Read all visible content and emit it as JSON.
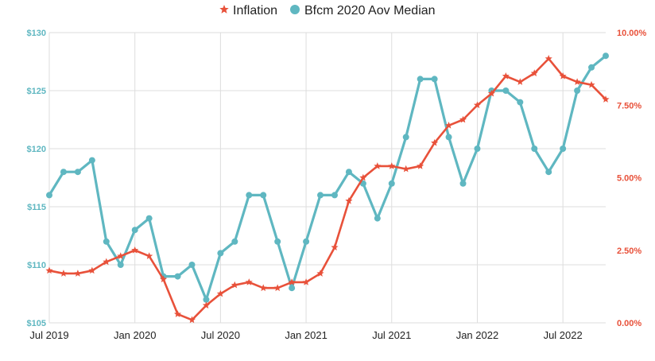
{
  "chart_data": {
    "type": "line",
    "title": "",
    "xlabel": "",
    "ylabel": "",
    "legend_position": "top-center",
    "grid": true,
    "x": [
      "2019-07",
      "2019-08",
      "2019-09",
      "2019-10",
      "2019-11",
      "2019-12",
      "2020-01",
      "2020-02",
      "2020-03",
      "2020-04",
      "2020-05",
      "2020-06",
      "2020-07",
      "2020-08",
      "2020-09",
      "2020-10",
      "2020-11",
      "2020-12",
      "2021-01",
      "2021-02",
      "2021-03",
      "2021-04",
      "2021-05",
      "2021-06",
      "2021-07",
      "2021-08",
      "2021-09",
      "2021-10",
      "2021-11",
      "2021-12",
      "2022-01",
      "2022-02",
      "2022-03",
      "2022-04",
      "2022-05",
      "2022-06",
      "2022-07",
      "2022-08",
      "2022-09",
      "2022-10"
    ],
    "x_tick_labels": [
      "Jul 2019",
      "Jan 2020",
      "Jul 2020",
      "Jan 2021",
      "Jul 2021",
      "Jan 2022",
      "Jul 2022"
    ],
    "y_left": {
      "ylim": [
        105,
        130
      ],
      "tick_labels": [
        "$105",
        "$110",
        "$115",
        "$120",
        "$125",
        "$130"
      ],
      "color": "#5fb7c1"
    },
    "y_right": {
      "ylim": [
        0,
        10
      ],
      "tick_labels": [
        "0.00%",
        "2.50%",
        "5.00%",
        "7.50%",
        "10.00%"
      ],
      "color": "#e8513a"
    },
    "series": [
      {
        "name": "Inflation",
        "axis": "right",
        "marker": "star",
        "color": "#e8513a",
        "values": [
          1.8,
          1.7,
          1.7,
          1.8,
          2.1,
          2.3,
          2.5,
          2.3,
          1.5,
          0.3,
          0.1,
          0.6,
          1.0,
          1.3,
          1.4,
          1.2,
          1.2,
          1.4,
          1.4,
          1.7,
          2.6,
          4.2,
          5.0,
          5.4,
          5.4,
          5.3,
          5.4,
          6.2,
          6.8,
          7.0,
          7.5,
          7.9,
          8.5,
          8.3,
          8.6,
          9.1,
          8.5,
          8.3,
          8.2,
          7.7
        ]
      },
      {
        "name": "Bfcm 2020 Aov Median",
        "axis": "left",
        "marker": "circle",
        "color": "#5fb7c1",
        "values": [
          116,
          118,
          118,
          119,
          112,
          110,
          113,
          114,
          109,
          109,
          110,
          107,
          111,
          112,
          116,
          116,
          112,
          108,
          112,
          116,
          116,
          118,
          117,
          114,
          117,
          121,
          126,
          126,
          121,
          117,
          120,
          125,
          125,
          124,
          120,
          118,
          120,
          125,
          127,
          128
        ]
      }
    ]
  }
}
